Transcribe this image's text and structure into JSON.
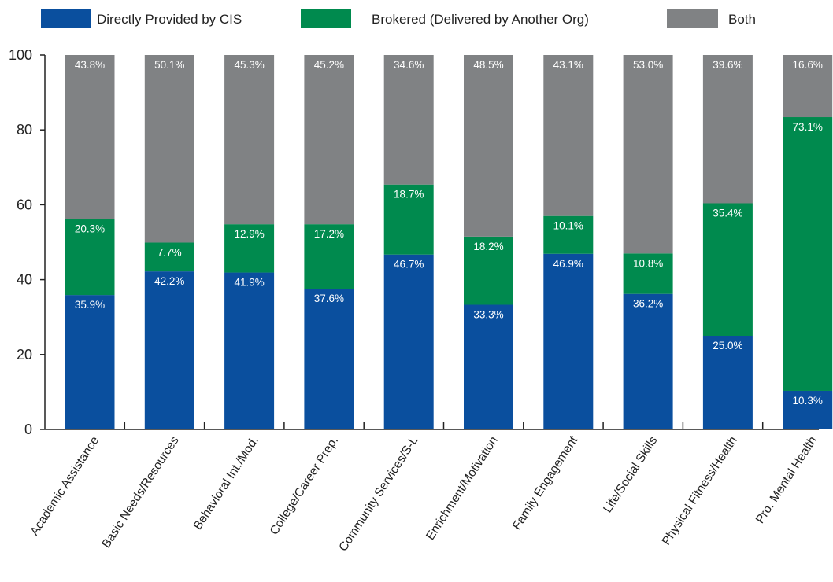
{
  "chart_data": {
    "type": "bar",
    "stacked": true,
    "categories": [
      "Academic Assistance",
      "Basic Needs/Resources",
      "Behavioral Int./Mod.",
      "College/Career Prep.",
      "Community Services/S-L",
      "Enrichment/Motivation",
      "Family Engagement",
      "Life/Social Skills",
      "Physical Fitness/Health",
      "Pro. Mental Health"
    ],
    "series": [
      {
        "name": "Directly Provided by CIS",
        "color": "#0a4f9e",
        "values": [
          35.9,
          42.2,
          41.9,
          37.6,
          46.7,
          33.3,
          46.9,
          36.2,
          25.0,
          10.3
        ],
        "labels": [
          "35.9%",
          "42.2%",
          "41.9%",
          "37.6%",
          "46.7%",
          "33.3%",
          "46.9%",
          "36.2%",
          "25.0%",
          "10.3%"
        ]
      },
      {
        "name": "Brokered (Delivered by Another Org)",
        "color": "#008a4e",
        "values": [
          20.3,
          7.7,
          12.9,
          17.2,
          18.7,
          18.2,
          10.1,
          10.8,
          35.4,
          73.1
        ],
        "labels": [
          "20.3%",
          "7.7%",
          "12.9%",
          "17.2%",
          "18.7%",
          "18.2%",
          "10.1%",
          "10.8%",
          "35.4%",
          "73.1%"
        ]
      },
      {
        "name": "Both",
        "color": "#808284",
        "values": [
          43.8,
          50.1,
          45.3,
          45.2,
          34.6,
          48.5,
          43.1,
          53.0,
          39.6,
          16.6
        ],
        "labels": [
          "43.8%",
          "50.1%",
          "45.3%",
          "45.2%",
          "34.6%",
          "48.5%",
          "43.1%",
          "53.0%",
          "39.6%",
          "16.6%"
        ]
      }
    ],
    "ylim": [
      0,
      100
    ],
    "yticks": [
      "0",
      "20",
      "40",
      "60",
      "80",
      "100"
    ],
    "ytick_values": [
      0,
      20,
      40,
      60,
      80,
      100
    ],
    "grid": false,
    "legend_position": "top"
  }
}
